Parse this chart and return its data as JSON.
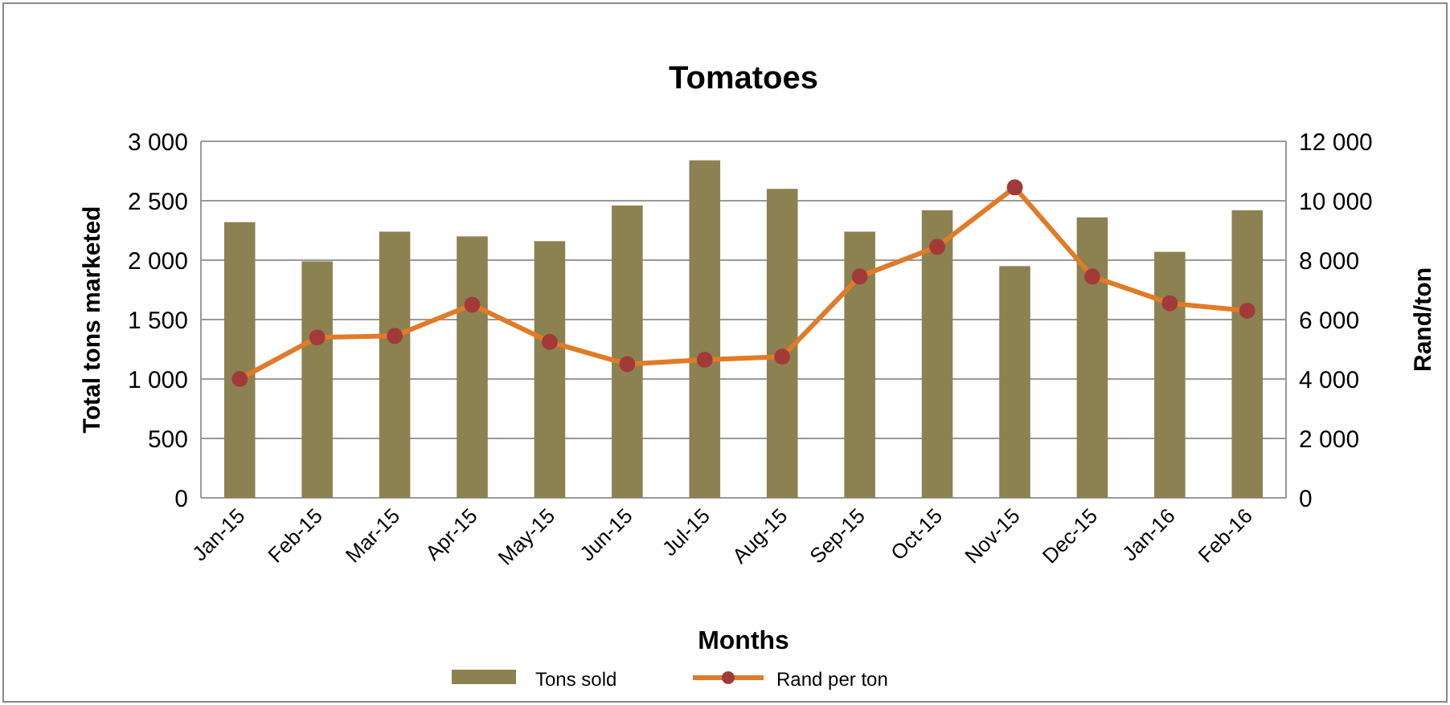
{
  "chart_data": {
    "type": "bar",
    "title": "Tomatoes",
    "xlabel": "Months",
    "ylabel": "Total tons marketed",
    "y2label": "Rand/ton",
    "categories": [
      "Jan-15",
      "Feb-15",
      "Mar-15",
      "Apr-15",
      "May-15",
      "Jun-15",
      "Jul-15",
      "Aug-15",
      "Sep-15",
      "Oct-15",
      "Nov-15",
      "Dec-15",
      "Jan-16",
      "Feb-16"
    ],
    "series": [
      {
        "name": "Tons sold",
        "color": "#8c8150",
        "values": [
          2320,
          1990,
          2240,
          2200,
          2160,
          2460,
          2840,
          2600,
          2240,
          2420,
          1950,
          2360,
          2070,
          2420
        ]
      },
      {
        "name": "Rand per ton",
        "type": "line",
        "axis": "y2",
        "color": "#e07b28",
        "marker": "circle",
        "values": [
          4000,
          5400,
          5450,
          6500,
          5250,
          4500,
          4650,
          4750,
          7450,
          8450,
          10450,
          7450,
          6550,
          6300
        ]
      }
    ],
    "ylim": [
      0,
      3000
    ],
    "yticks": [
      0,
      500,
      {
        "value": 1000,
        "label": "1 000"
      },
      {
        "value": 1500,
        "label": "1 500"
      },
      {
        "value": 2000,
        "label": "2 000"
      },
      {
        "value": 2500,
        "label": "2 500"
      },
      {
        "value": 3000,
        "label": "3 000"
      }
    ],
    "y2lim": [
      0,
      12000
    ],
    "y2ticks": [
      0,
      {
        "value": 2000,
        "label": "2 000"
      },
      {
        "value": 4000,
        "label": "4 000"
      },
      {
        "value": 6000,
        "label": "6 000"
      },
      {
        "value": 8000,
        "label": "8 000"
      },
      {
        "value": 10000,
        "label": "10 000"
      },
      {
        "value": 12000,
        "label": "12 000"
      }
    ],
    "grid": "y",
    "legend": "bottom"
  }
}
